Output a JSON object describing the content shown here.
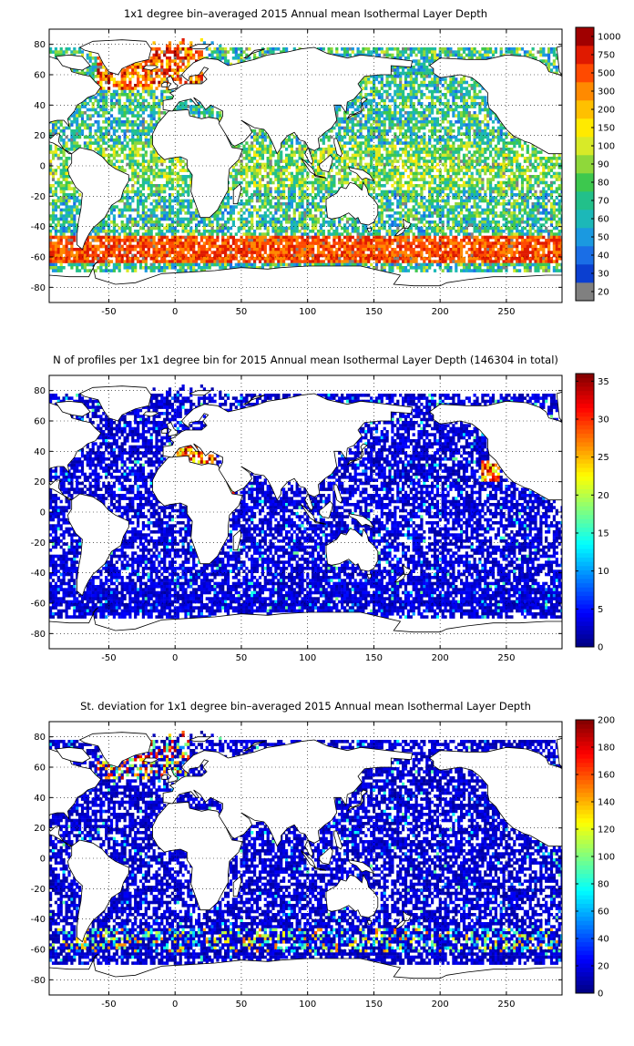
{
  "panels": [
    {
      "title": "1x1 degree bin–averaged 2015 Annual mean Isothermal Layer Depth",
      "colorbar": {
        "type": "categorical",
        "labels": [
          "20",
          "30",
          "40",
          "50",
          "60",
          "70",
          "80",
          "90",
          "100",
          "150",
          "200",
          "300",
          "500",
          "750",
          "1000"
        ],
        "colors": [
          "#808080",
          "#0b3fd0",
          "#1a6ee6",
          "#1b99e0",
          "#1cb8b8",
          "#22c08a",
          "#3dc84e",
          "#8fd83a",
          "#d8ea28",
          "#ffea00",
          "#ffc000",
          "#ff8a00",
          "#ff4a00",
          "#e01a00",
          "#a00000"
        ]
      }
    },
    {
      "title": "N of profiles per 1x1 degree bin for 2015 Annual mean Isothermal Layer Depth  (146304 in total)",
      "colorbar": {
        "type": "continuous",
        "min": 0,
        "max": 36,
        "ticks": [
          "0",
          "5",
          "10",
          "15",
          "20",
          "25",
          "30",
          "35"
        ],
        "tick_values": [
          0,
          5,
          10,
          15,
          20,
          25,
          30,
          35
        ]
      }
    },
    {
      "title": "St. deviation for 1x1 degree bin–averaged 2015 Annual mean Isothermal Layer Depth",
      "colorbar": {
        "type": "continuous",
        "min": 0,
        "max": 200,
        "ticks": [
          "0",
          "20",
          "40",
          "60",
          "80",
          "100",
          "120",
          "140",
          "160",
          "180",
          "200"
        ],
        "tick_values": [
          0,
          20,
          40,
          60,
          80,
          100,
          120,
          140,
          160,
          180,
          200
        ]
      }
    }
  ],
  "map": {
    "xlim": [
      -95,
      292
    ],
    "ylim": [
      -90,
      90
    ],
    "xticks": [
      "-50",
      "0",
      "50",
      "100",
      "150",
      "200",
      "250"
    ],
    "xtick_values": [
      -50,
      0,
      50,
      100,
      150,
      200,
      250
    ],
    "yticks": [
      "80",
      "60",
      "40",
      "20",
      "0",
      "-20",
      "-40",
      "-60",
      "-80"
    ],
    "ytick_values": [
      80,
      60,
      40,
      20,
      0,
      -20,
      -40,
      -60,
      -80
    ],
    "grid": true,
    "grid_style": "dotted"
  }
}
